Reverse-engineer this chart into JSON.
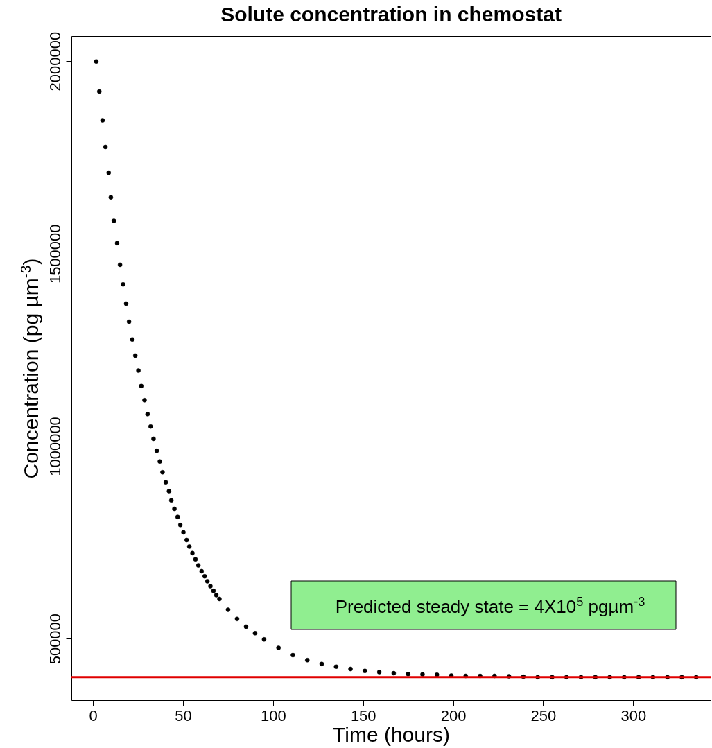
{
  "chart_data": {
    "type": "scatter",
    "title": "Solute concentration in chemostat",
    "xlabel": "Time (hours)",
    "ylabel": "Concentration (pg µm$^{-3}$)",
    "x": [
      1.8,
      3.5,
      5.3,
      6.9,
      8.7,
      9.9,
      11.6,
      13.4,
      15.0,
      16.7,
      18.4,
      20.0,
      21.8,
      23.5,
      25.2,
      26.8,
      28.6,
      30.3,
      32.0,
      33.6,
      35.4,
      37.1,
      38.6,
      40.4,
      42.2,
      43.5,
      45.2,
      47.0,
      48.5,
      50.2,
      52.0,
      53.5,
      55.2,
      56.9,
      58.5,
      60.3,
      62.0,
      63.5,
      65.2,
      66.9,
      68.5,
      70.2,
      75,
      80,
      85,
      90,
      95,
      103,
      111,
      119,
      127,
      135,
      143,
      151,
      159,
      167,
      175,
      183,
      191,
      199,
      207,
      215,
      223,
      231,
      239,
      247,
      255,
      263,
      271,
      279,
      287,
      295,
      303,
      311,
      319,
      327,
      335
    ],
    "series": [
      {
        "color": "#000000",
        "values": [
          1999000,
          1921000,
          1846000,
          1777000,
          1710000,
          1646000,
          1585000,
          1527000,
          1471000,
          1420000,
          1370000,
          1323000,
          1277000,
          1235000,
          1196000,
          1156000,
          1119000,
          1083000,
          1051000,
          1019000,
          988000,
          960000,
          932000,
          906000,
          883000,
          859000,
          837000,
          816000,
          795000,
          776000,
          756000,
          739000,
          722000,
          706000,
          690000,
          675000,
          662000,
          649000,
          636000,
          624000,
          613000,
          603000,
          575000,
          551000,
          531000,
          514000,
          498000,
          476000,
          457000,
          444000,
          434000,
          427000,
          421000,
          416000,
          413000,
          410000,
          408000,
          407000,
          406000,
          404000,
          403000,
          403000,
          403000,
          402000,
          401000,
          400000,
          400000,
          400000,
          400000,
          400000,
          400000,
          400000,
          400000,
          400000,
          400000,
          400000,
          400000
        ]
      }
    ],
    "xlim": [
      -12,
      343
    ],
    "xticks": [
      0,
      50,
      100,
      150,
      200,
      250,
      300
    ],
    "ylim": [
      340000,
      2065000
    ],
    "yticks": [
      500000,
      1000000,
      1500000,
      2000000
    ],
    "ref_lines": [
      {
        "axis": "y",
        "value": 400000,
        "color": "#e00000"
      }
    ],
    "annotations": [
      "Predicted steady state = 4X10$^{5}$ pgµm$^{-3}$"
    ],
    "grid": false,
    "marker": "circle"
  }
}
